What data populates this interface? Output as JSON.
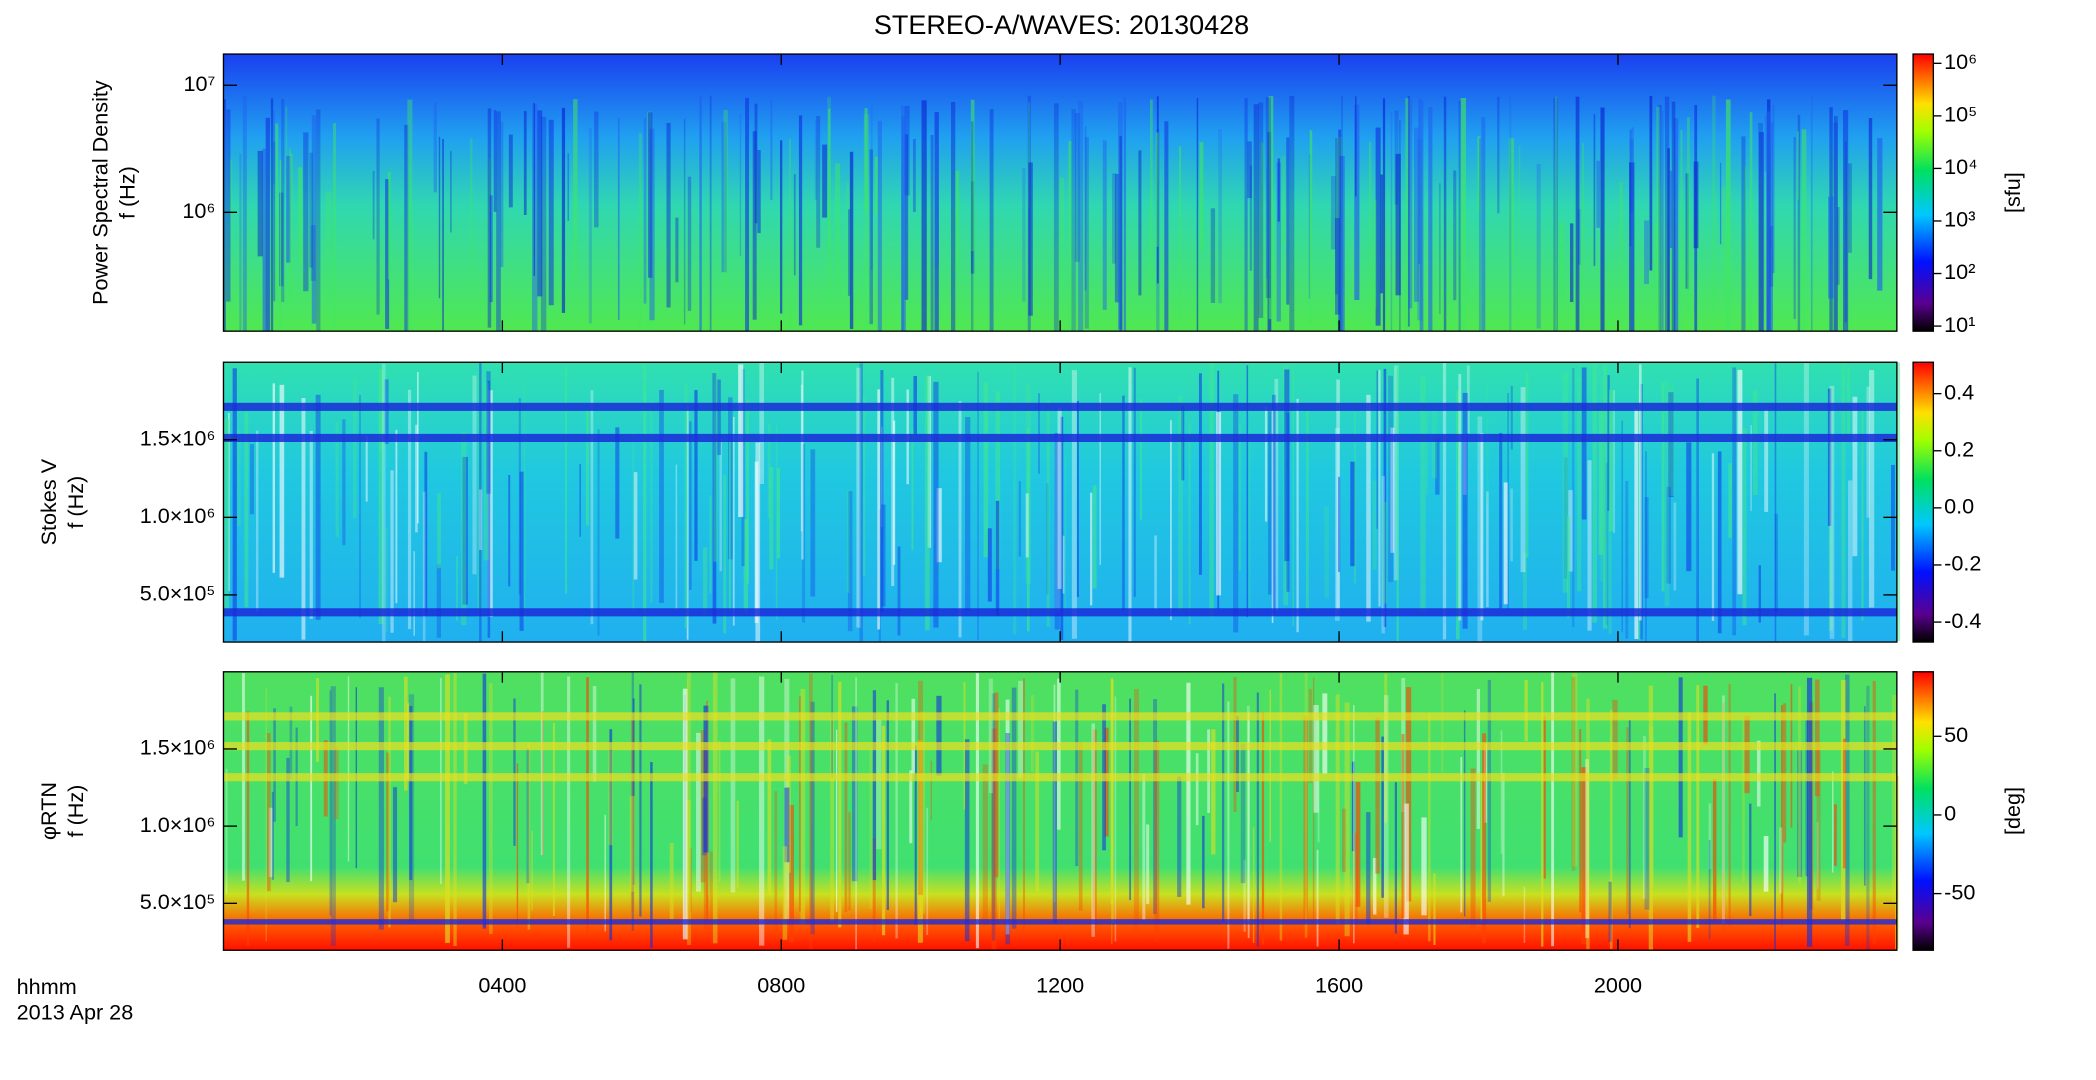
{
  "title": "STEREO-A/WAVES: 20130428",
  "time_label": "hhmm",
  "date_label": "2013 Apr 28",
  "chart_data": [
    {
      "type": "heatmap",
      "y_label": [
        "Power Spectral Density",
        "f (Hz)"
      ],
      "log_y": true,
      "xlim": [
        0,
        24
      ],
      "ylim": [
        116000,
        17600000
      ],
      "yticks": [
        {
          "value": 1000000,
          "label": "10⁶"
        },
        {
          "value": 10000000,
          "label": "10⁷"
        }
      ],
      "colorbar": {
        "label": "[sfu]",
        "log": true,
        "lim": [
          8,
          1500000
        ],
        "ticks": [
          {
            "value": 10,
            "label": "10¹"
          },
          {
            "value": 100,
            "label": "10²"
          },
          {
            "value": 1000,
            "label": "10³"
          },
          {
            "value": 10000,
            "label": "10⁴"
          },
          {
            "value": 100000,
            "label": "10⁵"
          },
          {
            "value": 1000000,
            "label": "10⁶"
          }
        ]
      }
    },
    {
      "type": "heatmap",
      "y_label": [
        "Stokes V",
        "f (Hz)"
      ],
      "log_y": false,
      "xlim": [
        0,
        24
      ],
      "ylim": [
        196000,
        2000000
      ],
      "yticks": [
        {
          "value": 500000,
          "label": "5.0×10⁵"
        },
        {
          "value": 1000000,
          "label": "1.0×10⁶"
        },
        {
          "value": 1500000,
          "label": "1.5×10⁶"
        }
      ],
      "colorbar": {
        "label": "",
        "log": false,
        "lim": [
          -0.47,
          0.51
        ],
        "ticks": [
          {
            "value": -0.4,
            "label": "-0.4"
          },
          {
            "value": -0.2,
            "label": "-0.2"
          },
          {
            "value": 0,
            "label": "0.0"
          },
          {
            "value": 0.2,
            "label": "0.2"
          },
          {
            "value": 0.4,
            "label": "0.4"
          }
        ]
      }
    },
    {
      "type": "heatmap",
      "y_label": [
        "φRTN",
        "f (Hz)"
      ],
      "log_y": false,
      "xlim": [
        0,
        24
      ],
      "ylim": [
        196000,
        2000000
      ],
      "yticks": [
        {
          "value": 500000,
          "label": "5.0×10⁵"
        },
        {
          "value": 1000000,
          "label": "1.0×10⁶"
        },
        {
          "value": 1500000,
          "label": "1.5×10⁶"
        }
      ],
      "xticks": [
        {
          "value": 4,
          "label": "0400"
        },
        {
          "value": 8,
          "label": "0800"
        },
        {
          "value": 12,
          "label": "1200"
        },
        {
          "value": 16,
          "label": "1600"
        },
        {
          "value": 20,
          "label": "2000"
        }
      ],
      "colorbar": {
        "label": "[deg]",
        "log": false,
        "lim": [
          -86,
          91
        ],
        "ticks": [
          -50,
          0,
          50
        ]
      }
    }
  ]
}
